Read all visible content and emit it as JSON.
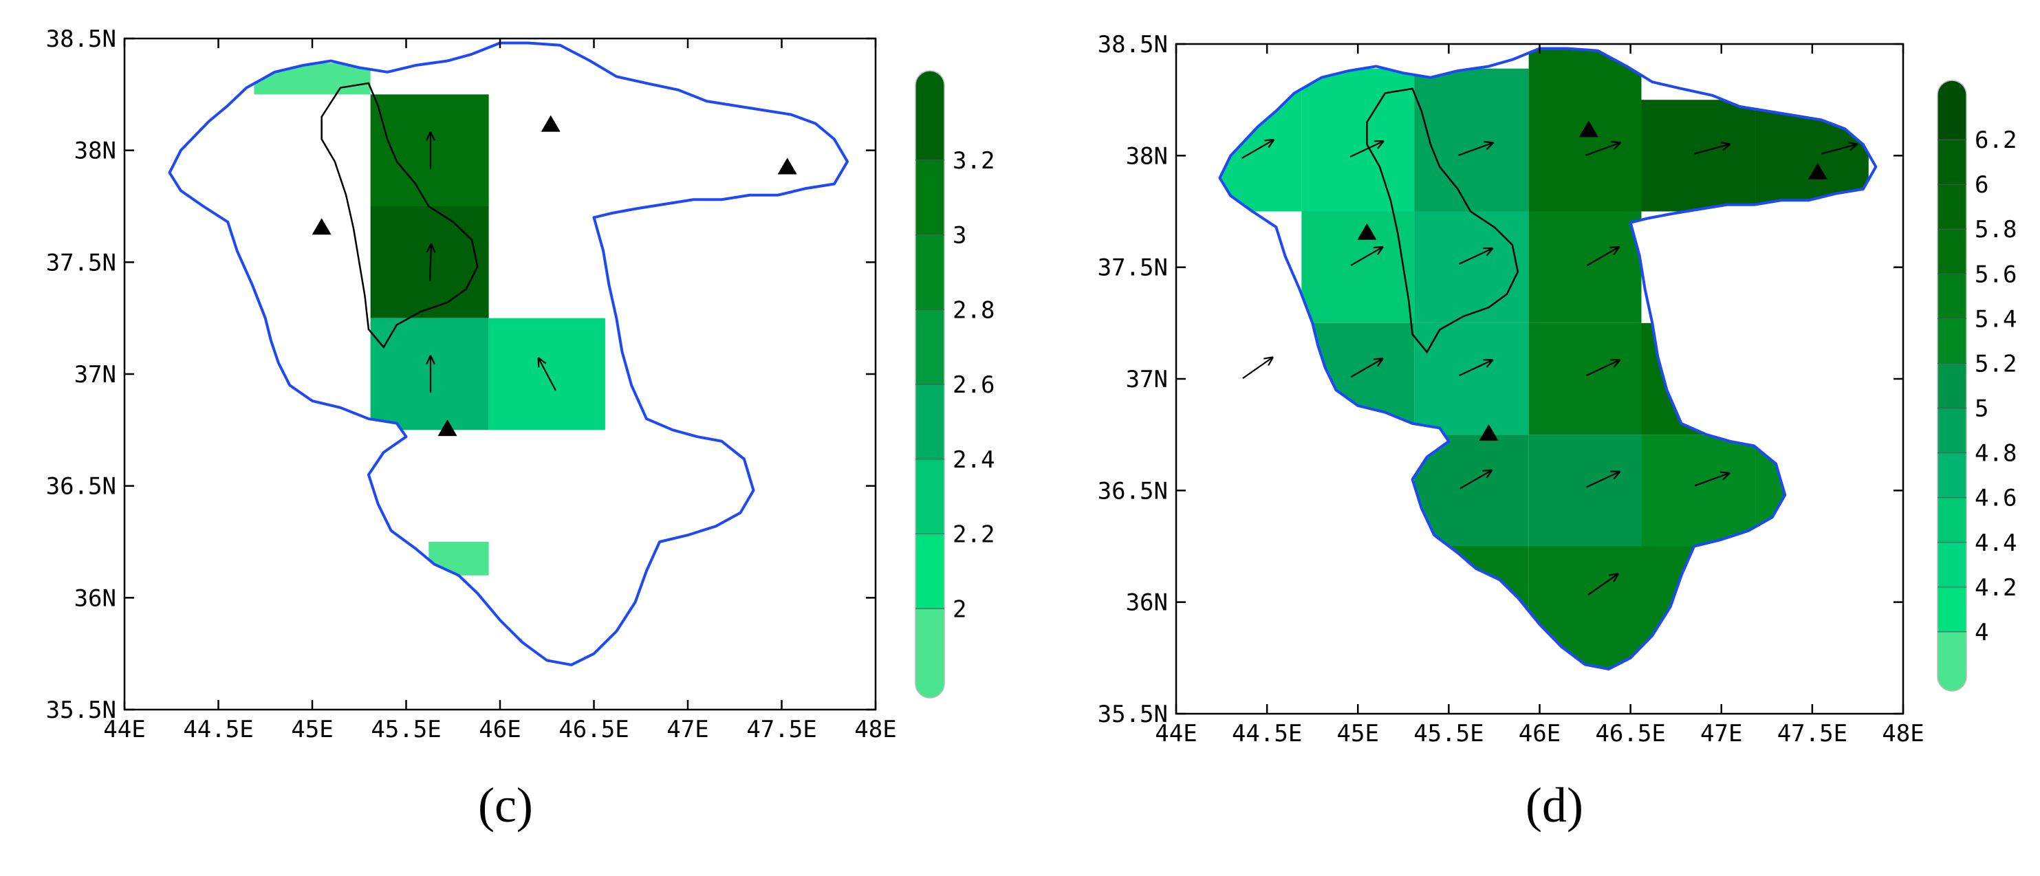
{
  "panels": [
    {
      "id": "c",
      "caption": "(c)",
      "map_extent": {
        "lon": [
          44,
          48
        ],
        "lat": [
          35.5,
          38.5
        ]
      },
      "x_ticks": [
        "44E",
        "44.5E",
        "45E",
        "45.5E",
        "46E",
        "46.5E",
        "47E",
        "47.5E",
        "48E"
      ],
      "y_ticks": [
        "35.5N",
        "36N",
        "36.5N",
        "37N",
        "37.5N",
        "38N",
        "38.5N"
      ],
      "colorbar": {
        "labels": [
          "2",
          "2.2",
          "2.4",
          "2.6",
          "2.8",
          "3",
          "3.2"
        ],
        "colors": [
          "#4be590",
          "#00e07f",
          "#00c873",
          "#00ae63",
          "#009c3f",
          "#008a22",
          "#007a13",
          "#006208"
        ]
      },
      "grid_cells": [
        {
          "lon": [
            44.69,
            45.31
          ],
          "lat": [
            38.25,
            38.39
          ],
          "color": "#4be590"
        },
        {
          "lon": [
            45.31,
            45.94
          ],
          "lat": [
            37.75,
            38.25
          ],
          "color": "#00700d"
        },
        {
          "lon": [
            45.31,
            45.94
          ],
          "lat": [
            37.25,
            37.75
          ],
          "color": "#005d08"
        },
        {
          "lon": [
            45.31,
            45.94
          ],
          "lat": [
            36.75,
            37.25
          ],
          "color": "#00b56f"
        },
        {
          "lon": [
            45.94,
            46.56
          ],
          "lat": [
            36.75,
            37.25
          ],
          "color": "#00d67f"
        },
        {
          "lon": [
            45.62,
            45.94
          ],
          "lat": [
            36.1,
            36.25
          ],
          "color": "#4be590"
        }
      ],
      "arrows": [
        {
          "lon": 45.63,
          "lat": 38.0,
          "dir": 90
        },
        {
          "lon": 45.63,
          "lat": 37.5,
          "dir": 88
        },
        {
          "lon": 45.63,
          "lat": 37.0,
          "dir": 90
        },
        {
          "lon": 46.25,
          "lat": 37.0,
          "dir": 118
        }
      ],
      "stations": [
        {
          "lon": 45.05,
          "lat": 37.66
        },
        {
          "lon": 46.27,
          "lat": 38.12
        },
        {
          "lon": 47.53,
          "lat": 37.93
        },
        {
          "lon": 45.72,
          "lat": 36.76
        }
      ]
    },
    {
      "id": "d",
      "caption": "(d)",
      "map_extent": {
        "lon": [
          44,
          48
        ],
        "lat": [
          35.5,
          38.5
        ]
      },
      "x_ticks": [
        "44E",
        "44.5E",
        "45E",
        "45.5E",
        "46E",
        "46.5E",
        "47E",
        "47.5E",
        "48E"
      ],
      "y_ticks": [
        "35.5N",
        "36N",
        "36.5N",
        "37N",
        "37.5N",
        "38N",
        "38.5N"
      ],
      "colorbar": {
        "labels": [
          "4",
          "4.2",
          "4.4",
          "4.6",
          "4.8",
          "5",
          "5.2",
          "5.4",
          "5.6",
          "5.8",
          "6",
          "6.2"
        ],
        "colors": [
          "#4be590",
          "#00e07f",
          "#00d67f",
          "#00c873",
          "#00b56f",
          "#00a35b",
          "#00944a",
          "#008a22",
          "#007e17",
          "#00700d",
          "#006608",
          "#005d08",
          "#004d06"
        ]
      },
      "grid_cells": [
        {
          "lon": [
            44.06,
            44.69
          ],
          "lat": [
            37.75,
            38.39
          ],
          "color": "#00d67f"
        },
        {
          "lon": [
            44.69,
            45.31
          ],
          "lat": [
            37.75,
            38.39
          ],
          "color": "#00d67f"
        },
        {
          "lon": [
            45.31,
            45.94
          ],
          "lat": [
            37.75,
            38.39
          ],
          "color": "#00a35b"
        },
        {
          "lon": [
            45.94,
            46.56
          ],
          "lat": [
            37.75,
            38.5
          ],
          "color": "#00700d"
        },
        {
          "lon": [
            46.56,
            47.19
          ],
          "lat": [
            37.75,
            38.25
          ],
          "color": "#005d08"
        },
        {
          "lon": [
            47.19,
            47.81
          ],
          "lat": [
            37.75,
            38.25
          ],
          "color": "#005d08"
        },
        {
          "lon": [
            44.69,
            45.31
          ],
          "lat": [
            37.25,
            37.75
          ],
          "color": "#00c873"
        },
        {
          "lon": [
            45.31,
            45.94
          ],
          "lat": [
            37.25,
            37.75
          ],
          "color": "#00b56f"
        },
        {
          "lon": [
            45.94,
            46.56
          ],
          "lat": [
            37.25,
            37.75
          ],
          "color": "#007e17"
        },
        {
          "lon": [
            44.69,
            45.31
          ],
          "lat": [
            36.75,
            37.25
          ],
          "color": "#00a35b"
        },
        {
          "lon": [
            45.31,
            45.94
          ],
          "lat": [
            36.75,
            37.25
          ],
          "color": "#00b56f"
        },
        {
          "lon": [
            45.94,
            46.56
          ],
          "lat": [
            36.75,
            37.25
          ],
          "color": "#007e17"
        },
        {
          "lon": [
            46.56,
            47.19
          ],
          "lat": [
            36.75,
            37.25
          ],
          "color": "#00700d"
        },
        {
          "lon": [
            45.31,
            45.94
          ],
          "lat": [
            36.25,
            36.75
          ],
          "color": "#00944a"
        },
        {
          "lon": [
            45.94,
            46.56
          ],
          "lat": [
            36.25,
            36.75
          ],
          "color": "#00944a"
        },
        {
          "lon": [
            46.56,
            47.19
          ],
          "lat": [
            36.25,
            36.75
          ],
          "color": "#008a22"
        },
        {
          "lon": [
            47.19,
            47.81
          ],
          "lat": [
            36.25,
            36.75
          ],
          "color": "#008a22"
        },
        {
          "lon": [
            45.31,
            45.94
          ],
          "lat": [
            35.75,
            36.25
          ],
          "color": "#007e17"
        },
        {
          "lon": [
            45.94,
            46.56
          ],
          "lat": [
            35.65,
            36.25
          ],
          "color": "#007e17"
        },
        {
          "lon": [
            46.56,
            47.19
          ],
          "lat": [
            35.75,
            36.25
          ],
          "color": "#007e17"
        }
      ],
      "arrows": [
        {
          "lon": 44.45,
          "lat": 38.03,
          "dir": 30
        },
        {
          "lon": 45.05,
          "lat": 38.03,
          "dir": 25
        },
        {
          "lon": 45.65,
          "lat": 38.03,
          "dir": 20
        },
        {
          "lon": 46.35,
          "lat": 38.03,
          "dir": 20
        },
        {
          "lon": 46.95,
          "lat": 38.03,
          "dir": 15
        },
        {
          "lon": 47.65,
          "lat": 38.03,
          "dir": 15
        },
        {
          "lon": 45.05,
          "lat": 37.55,
          "dir": 30
        },
        {
          "lon": 45.65,
          "lat": 37.55,
          "dir": 25
        },
        {
          "lon": 46.35,
          "lat": 37.55,
          "dir": 30
        },
        {
          "lon": 44.45,
          "lat": 37.05,
          "dir": 35
        },
        {
          "lon": 45.05,
          "lat": 37.05,
          "dir": 30
        },
        {
          "lon": 45.65,
          "lat": 37.05,
          "dir": 25
        },
        {
          "lon": 46.35,
          "lat": 37.05,
          "dir": 25
        },
        {
          "lon": 45.65,
          "lat": 36.55,
          "dir": 30
        },
        {
          "lon": 46.35,
          "lat": 36.55,
          "dir": 25
        },
        {
          "lon": 46.95,
          "lat": 36.55,
          "dir": 20
        },
        {
          "lon": 46.35,
          "lat": 36.08,
          "dir": 35
        }
      ],
      "stations": [
        {
          "lon": 45.05,
          "lat": 37.66
        },
        {
          "lon": 46.27,
          "lat": 38.12
        },
        {
          "lon": 47.53,
          "lat": 37.93
        },
        {
          "lon": 45.72,
          "lat": 36.76
        }
      ]
    }
  ],
  "basin_outline": [
    [
      44.24,
      37.9
    ],
    [
      44.3,
      38.0
    ],
    [
      44.45,
      38.13
    ],
    [
      44.55,
      38.2
    ],
    [
      44.65,
      38.28
    ],
    [
      44.8,
      38.35
    ],
    [
      44.95,
      38.38
    ],
    [
      45.1,
      38.4
    ],
    [
      45.25,
      38.37
    ],
    [
      45.4,
      38.35
    ],
    [
      45.55,
      38.38
    ],
    [
      45.72,
      38.4
    ],
    [
      45.85,
      38.43
    ],
    [
      46.0,
      38.48
    ],
    [
      46.15,
      38.48
    ],
    [
      46.32,
      38.47
    ],
    [
      46.48,
      38.4
    ],
    [
      46.62,
      38.33
    ],
    [
      46.78,
      38.3
    ],
    [
      46.95,
      38.27
    ],
    [
      47.1,
      38.22
    ],
    [
      47.25,
      38.2
    ],
    [
      47.4,
      38.18
    ],
    [
      47.55,
      38.16
    ],
    [
      47.68,
      38.12
    ],
    [
      47.78,
      38.05
    ],
    [
      47.85,
      37.95
    ],
    [
      47.78,
      37.85
    ],
    [
      47.63,
      37.83
    ],
    [
      47.48,
      37.8
    ],
    [
      47.33,
      37.8
    ],
    [
      47.18,
      37.78
    ],
    [
      47.03,
      37.78
    ],
    [
      46.88,
      37.76
    ],
    [
      46.73,
      37.74
    ],
    [
      46.6,
      37.72
    ],
    [
      46.5,
      37.7
    ],
    [
      46.55,
      37.55
    ],
    [
      46.58,
      37.4
    ],
    [
      46.62,
      37.25
    ],
    [
      46.65,
      37.1
    ],
    [
      46.7,
      36.95
    ],
    [
      46.78,
      36.8
    ],
    [
      46.92,
      36.75
    ],
    [
      47.05,
      36.72
    ],
    [
      47.18,
      36.7
    ],
    [
      47.3,
      36.62
    ],
    [
      47.35,
      36.48
    ],
    [
      47.28,
      36.38
    ],
    [
      47.15,
      36.32
    ],
    [
      47.0,
      36.28
    ],
    [
      46.85,
      36.25
    ],
    [
      46.78,
      36.12
    ],
    [
      46.72,
      35.98
    ],
    [
      46.62,
      35.85
    ],
    [
      46.5,
      35.75
    ],
    [
      46.38,
      35.7
    ],
    [
      46.25,
      35.72
    ],
    [
      46.12,
      35.8
    ],
    [
      46.0,
      35.9
    ],
    [
      45.88,
      36.02
    ],
    [
      45.78,
      36.1
    ],
    [
      45.65,
      36.15
    ],
    [
      45.55,
      36.22
    ],
    [
      45.42,
      36.3
    ],
    [
      45.35,
      36.42
    ],
    [
      45.3,
      36.55
    ],
    [
      45.38,
      36.65
    ],
    [
      45.5,
      36.72
    ],
    [
      45.45,
      36.78
    ],
    [
      45.3,
      36.8
    ],
    [
      45.15,
      36.85
    ],
    [
      45.0,
      36.88
    ],
    [
      44.88,
      36.95
    ],
    [
      44.82,
      37.05
    ],
    [
      44.78,
      37.15
    ],
    [
      44.75,
      37.25
    ],
    [
      44.68,
      37.4
    ],
    [
      44.6,
      37.55
    ],
    [
      44.55,
      37.68
    ],
    [
      44.42,
      37.75
    ],
    [
      44.3,
      37.82
    ],
    [
      44.24,
      37.9
    ]
  ],
  "lake_outline": [
    [
      45.05,
      38.15
    ],
    [
      45.15,
      38.28
    ],
    [
      45.3,
      38.3
    ],
    [
      45.35,
      38.2
    ],
    [
      45.4,
      38.05
    ],
    [
      45.45,
      37.95
    ],
    [
      45.55,
      37.85
    ],
    [
      45.62,
      37.75
    ],
    [
      45.75,
      37.68
    ],
    [
      45.85,
      37.6
    ],
    [
      45.88,
      37.48
    ],
    [
      45.82,
      37.38
    ],
    [
      45.72,
      37.32
    ],
    [
      45.58,
      37.28
    ],
    [
      45.45,
      37.22
    ],
    [
      45.38,
      37.12
    ],
    [
      45.3,
      37.2
    ],
    [
      45.28,
      37.35
    ],
    [
      45.25,
      37.5
    ],
    [
      45.22,
      37.65
    ],
    [
      45.18,
      37.8
    ],
    [
      45.12,
      37.95
    ],
    [
      45.05,
      38.05
    ],
    [
      45.05,
      38.15
    ]
  ],
  "colors": {
    "basin": "#1f49f5",
    "lake": "#000000",
    "axes": "#000000"
  }
}
